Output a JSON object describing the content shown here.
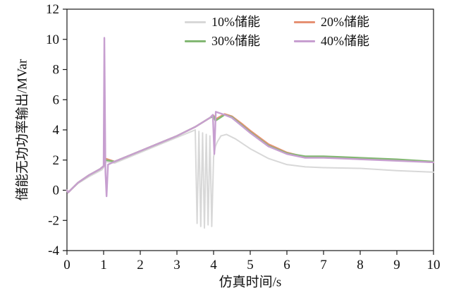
{
  "chart_data": {
    "type": "line",
    "title": "",
    "xlabel": "仿真时间/s",
    "ylabel": "储能无功功率输出/MVar",
    "xlim": [
      0,
      10
    ],
    "ylim": [
      -4,
      12
    ],
    "xticks": [
      0,
      1,
      2,
      3,
      4,
      5,
      6,
      7,
      8,
      9,
      10
    ],
    "yticks": [
      -4,
      -2,
      0,
      2,
      4,
      6,
      8,
      10,
      12
    ],
    "grid": false,
    "legend_position": "top-center",
    "frame_color": "#1a1a1a",
    "series": [
      {
        "name": "10%储能",
        "color": "#d8d8d8",
        "width": 2,
        "x": [
          0,
          0.03,
          0.3,
          0.6,
          0.95,
          1.0,
          1.05,
          1.3,
          2,
          2.5,
          3,
          3.4,
          3.5,
          3.55,
          3.6,
          3.65,
          3.7,
          3.75,
          3.8,
          3.85,
          3.9,
          3.95,
          4.0,
          4.05,
          4.1,
          4.2,
          4.35,
          4.6,
          5,
          5.5,
          6,
          6.5,
          7,
          8,
          9,
          10
        ],
        "y": [
          0,
          -0.15,
          0.45,
          0.9,
          1.35,
          1.5,
          1.9,
          1.8,
          2.5,
          3.0,
          3.5,
          3.9,
          4.0,
          -2.2,
          3.9,
          -2.4,
          3.8,
          -2.5,
          3.7,
          -2.3,
          3.6,
          -2.4,
          2.2,
          2.9,
          3.2,
          3.6,
          3.7,
          3.4,
          2.75,
          2.1,
          1.7,
          1.55,
          1.5,
          1.45,
          1.3,
          1.2
        ]
      },
      {
        "name": "20%储能",
        "color": "#e69173",
        "width": 2.4,
        "x": [
          0,
          0.03,
          0.3,
          0.6,
          0.9,
          1.0,
          1.05,
          1.3,
          2,
          2.5,
          3,
          3.5,
          3.9,
          4.0,
          4.05,
          4.3,
          4.5,
          4.8,
          5,
          5.5,
          6,
          6.5,
          7,
          7.5,
          8,
          9,
          10
        ],
        "y": [
          0,
          -0.15,
          0.5,
          1.0,
          1.4,
          1.6,
          2.1,
          1.9,
          2.6,
          3.1,
          3.6,
          4.2,
          4.8,
          4.95,
          4.7,
          5.05,
          4.9,
          4.35,
          3.95,
          3.05,
          2.5,
          2.2,
          2.2,
          2.15,
          2.1,
          2.0,
          1.85
        ]
      },
      {
        "name": "30%储能",
        "color": "#83b873",
        "width": 2.4,
        "x": [
          0,
          0.03,
          0.3,
          0.6,
          0.9,
          1.0,
          1.05,
          1.3,
          2,
          2.5,
          3,
          3.5,
          3.9,
          4.0,
          4.05,
          4.3,
          4.5,
          4.8,
          5,
          5.5,
          6,
          6.5,
          7,
          7.5,
          8,
          9,
          10
        ],
        "y": [
          0,
          -0.15,
          0.5,
          1.0,
          1.4,
          1.6,
          2.0,
          1.9,
          2.6,
          3.1,
          3.6,
          4.2,
          4.8,
          4.9,
          4.6,
          5.0,
          4.85,
          4.25,
          3.85,
          2.95,
          2.45,
          2.25,
          2.25,
          2.2,
          2.15,
          2.05,
          1.9
        ]
      },
      {
        "name": "40%储能",
        "color": "#c79fd0",
        "width": 2.4,
        "x": [
          0,
          0.03,
          0.3,
          0.6,
          0.9,
          1.0,
          1.02,
          1.05,
          1.08,
          1.12,
          1.3,
          2,
          2.5,
          3,
          3.5,
          3.9,
          3.98,
          4.02,
          4.06,
          4.3,
          4.5,
          4.8,
          5,
          5.5,
          6,
          6.5,
          7,
          7.5,
          8,
          9,
          10
        ],
        "y": [
          0,
          -0.15,
          0.5,
          1.0,
          1.4,
          1.6,
          10.1,
          1.2,
          -0.4,
          1.7,
          1.9,
          2.6,
          3.1,
          3.6,
          4.2,
          4.8,
          5.0,
          2.4,
          5.2,
          5.0,
          4.8,
          4.2,
          3.8,
          2.9,
          2.4,
          2.15,
          2.15,
          2.1,
          2.05,
          1.95,
          1.85
        ]
      }
    ]
  }
}
